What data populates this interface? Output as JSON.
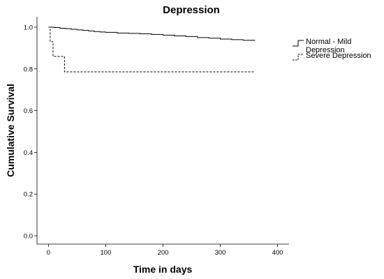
{
  "chart_data": {
    "type": "line",
    "step": true,
    "title": "Depression",
    "xlabel": "Time in days",
    "ylabel": "Cumulative Survival",
    "xlim": [
      -20,
      420
    ],
    "ylim": [
      -0.04,
      1.05
    ],
    "xticks": [
      "0",
      "100",
      "200",
      "300",
      "400"
    ],
    "yticks": [
      "0.0",
      "0.2",
      "0.4",
      "0.6",
      "0.8",
      "1.0"
    ],
    "xtick_values": [
      0,
      100,
      200,
      300,
      400
    ],
    "ytick_values": [
      0.0,
      0.2,
      0.4,
      0.6,
      0.8,
      1.0
    ],
    "grid": false,
    "legend_position": "right",
    "series": [
      {
        "name": "Normal - Mild Depression",
        "style": "solid",
        "color": "#000000",
        "x": [
          0,
          10,
          20,
          30,
          40,
          50,
          60,
          70,
          80,
          90,
          100,
          120,
          140,
          160,
          180,
          200,
          220,
          240,
          260,
          280,
          300,
          320,
          340,
          360
        ],
        "y": [
          1.0,
          0.998,
          0.995,
          0.993,
          0.99,
          0.987,
          0.985,
          0.982,
          0.979,
          0.977,
          0.975,
          0.972,
          0.97,
          0.968,
          0.965,
          0.962,
          0.958,
          0.955,
          0.95,
          0.947,
          0.943,
          0.94,
          0.937,
          0.935
        ]
      },
      {
        "name": "Severe Depression",
        "style": "dashed",
        "color": "#000000",
        "x": [
          0,
          3,
          8,
          28,
          360
        ],
        "y": [
          1.0,
          0.93,
          0.86,
          0.786,
          0.786
        ]
      }
    ]
  }
}
